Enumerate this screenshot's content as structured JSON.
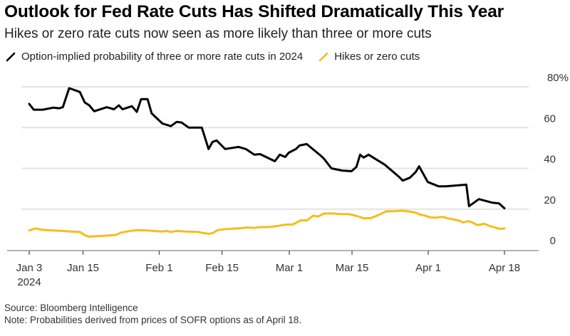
{
  "chart_data": {
    "type": "line",
    "title": "Outlook for Fed Rate Cuts Has Shifted Dramatically This Year",
    "subtitle": "Hikes or zero rate cuts now seen as more likely than three or more cuts",
    "xlabel": "",
    "ylabel": "",
    "ylim": [
      0,
      80
    ],
    "y_ticks": [
      0,
      20,
      40,
      60,
      80
    ],
    "y_tick_labels": [
      "0",
      "20",
      "40",
      "60",
      "80%"
    ],
    "y_axis_side": "right",
    "grid": true,
    "x_unit": "days since Jan 3, 2024",
    "xlim": [
      0,
      106
    ],
    "x_ticks": [
      {
        "day": 0,
        "label": "Jan 3",
        "sublabel": "2024"
      },
      {
        "day": 12,
        "label": "Jan 15",
        "sublabel": ""
      },
      {
        "day": 29,
        "label": "Feb 1",
        "sublabel": ""
      },
      {
        "day": 43,
        "label": "Feb 15",
        "sublabel": ""
      },
      {
        "day": 58,
        "label": "Mar 1",
        "sublabel": ""
      },
      {
        "day": 72,
        "label": "Mar 15",
        "sublabel": ""
      },
      {
        "day": 89,
        "label": "Apr 1",
        "sublabel": ""
      },
      {
        "day": 106,
        "label": "Apr 18",
        "sublabel": ""
      }
    ],
    "legend_position": "top-left",
    "series": [
      {
        "name": "Option-implied probability of three or more rate cuts in 2024",
        "color": "#000000",
        "points": [
          [
            0,
            71.6
          ],
          [
            1,
            68.8
          ],
          [
            3,
            68.8
          ],
          [
            5.4,
            69.8
          ],
          [
            6.7,
            69.5
          ],
          [
            7.5,
            70
          ],
          [
            8.9,
            79.3
          ],
          [
            9.4,
            79
          ],
          [
            11.3,
            77.5
          ],
          [
            12.4,
            72.3
          ],
          [
            13.4,
            70.9
          ],
          [
            14.5,
            68
          ],
          [
            17.3,
            70
          ],
          [
            18.9,
            69
          ],
          [
            20,
            70.9
          ],
          [
            20.8,
            69
          ],
          [
            22.9,
            70.5
          ],
          [
            24,
            67.7
          ],
          [
            24.96,
            74
          ],
          [
            26.4,
            74
          ],
          [
            27.3,
            67
          ],
          [
            29.7,
            62
          ],
          [
            31.6,
            60.7
          ],
          [
            32.9,
            62.8
          ],
          [
            34,
            62.5
          ],
          [
            35.6,
            60
          ],
          [
            38.5,
            60
          ],
          [
            40,
            49.5
          ],
          [
            40.9,
            53
          ],
          [
            41.8,
            53.7
          ],
          [
            43.7,
            49.5
          ],
          [
            46.7,
            50.5
          ],
          [
            48.3,
            49.5
          ],
          [
            50.2,
            46.7
          ],
          [
            51.5,
            47
          ],
          [
            54.8,
            43.5
          ],
          [
            55.9,
            46.7
          ],
          [
            57.1,
            45.6
          ],
          [
            57.9,
            47.7
          ],
          [
            59.5,
            49.5
          ],
          [
            60.3,
            51.2
          ],
          [
            61.9,
            51.9
          ],
          [
            65,
            46.3
          ],
          [
            65.8,
            44.6
          ],
          [
            67.4,
            40
          ],
          [
            69.8,
            38.9
          ],
          [
            71.9,
            38.6
          ],
          [
            72.97,
            40.7
          ],
          [
            73.8,
            46.7
          ],
          [
            74.6,
            45.3
          ],
          [
            75.7,
            46.7
          ],
          [
            79.3,
            41.8
          ],
          [
            82.5,
            35.8
          ],
          [
            83.3,
            34
          ],
          [
            84.9,
            35.4
          ],
          [
            86.2,
            38.2
          ],
          [
            86.96,
            41
          ],
          [
            88.9,
            33.3
          ],
          [
            91.3,
            31.2
          ],
          [
            92.9,
            31.2
          ],
          [
            97.5,
            32
          ],
          [
            98.1,
            21.4
          ],
          [
            100.3,
            24.9
          ],
          [
            103.2,
            23.2
          ],
          [
            104.8,
            22.8
          ],
          [
            106,
            20.4
          ]
        ]
      },
      {
        "name": "Hikes or zero cuts",
        "color": "#f5bd1f",
        "points": [
          [
            0,
            9.5
          ],
          [
            1.3,
            10.5
          ],
          [
            3,
            9.8
          ],
          [
            5.4,
            9.5
          ],
          [
            7.5,
            9.3
          ],
          [
            9.4,
            9
          ],
          [
            11.3,
            8.8
          ],
          [
            12.4,
            7.2
          ],
          [
            13.4,
            6.5
          ],
          [
            14.8,
            6.7
          ],
          [
            17.3,
            7
          ],
          [
            19.2,
            7.3
          ],
          [
            20.5,
            8.5
          ],
          [
            22.3,
            9.2
          ],
          [
            24,
            9.7
          ],
          [
            26.4,
            9.5
          ],
          [
            28.3,
            9.2
          ],
          [
            29.7,
            9
          ],
          [
            30.6,
            9.3
          ],
          [
            31.6,
            8.8
          ],
          [
            32.9,
            9.3
          ],
          [
            35,
            9
          ],
          [
            37.7,
            8.8
          ],
          [
            38.7,
            8.3
          ],
          [
            40,
            7.9
          ],
          [
            40.9,
            8.2
          ],
          [
            42,
            9.7
          ],
          [
            44,
            10.2
          ],
          [
            46.7,
            10.6
          ],
          [
            48.6,
            11
          ],
          [
            50.2,
            10.8
          ],
          [
            51.2,
            11.1
          ],
          [
            54,
            11.3
          ],
          [
            56.1,
            12
          ],
          [
            57.3,
            12.4
          ],
          [
            58.8,
            12.5
          ],
          [
            60.6,
            14.5
          ],
          [
            62,
            14.5
          ],
          [
            63.3,
            16.8
          ],
          [
            64.4,
            16.4
          ],
          [
            65.8,
            17.8
          ],
          [
            67.4,
            17.9
          ],
          [
            69.3,
            17.6
          ],
          [
            71.5,
            17.5
          ],
          [
            73.1,
            16.6
          ],
          [
            74.6,
            15.5
          ],
          [
            76.2,
            15.6
          ],
          [
            77.8,
            17
          ],
          [
            79.6,
            18.9
          ],
          [
            81.7,
            19
          ],
          [
            83,
            19.2
          ],
          [
            84.6,
            18.9
          ],
          [
            86.2,
            18.3
          ],
          [
            87.2,
            17.3
          ],
          [
            88,
            17
          ],
          [
            89.4,
            16
          ],
          [
            90.6,
            15.8
          ],
          [
            92.2,
            16.2
          ],
          [
            93.3,
            15.5
          ],
          [
            95.7,
            14.5
          ],
          [
            96.8,
            13.5
          ],
          [
            97.8,
            14
          ],
          [
            98.2,
            14
          ],
          [
            100,
            12.2
          ],
          [
            101.5,
            12.8
          ],
          [
            103,
            11.5
          ],
          [
            105,
            10.3
          ],
          [
            106,
            10.5
          ]
        ]
      }
    ],
    "source": "Source: Bloomberg Intelligence",
    "note": "Note: Probabilities derived from prices of SOFR options as of April 18."
  }
}
